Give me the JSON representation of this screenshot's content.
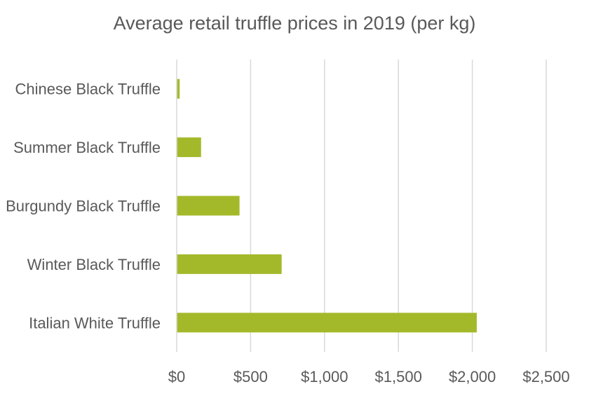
{
  "chart_data": {
    "type": "bar",
    "orientation": "horizontal",
    "title": "Average retail truffle prices in 2019 (per kg)",
    "xlabel": "",
    "ylabel": "",
    "categories": [
      "Chinese Black Truffle",
      "Summer Black Truffle",
      "Burgundy Black Truffle",
      "Winter Black Truffle",
      "Italian White Truffle"
    ],
    "values": [
      20,
      165,
      425,
      710,
      2030
    ],
    "xlim": [
      0,
      2500
    ],
    "x_ticks": [
      0,
      500,
      1000,
      1500,
      2000,
      2500
    ],
    "x_tick_labels": [
      "$0",
      "$500",
      "$1,000",
      "$1,500",
      "$2,000",
      "$2,500"
    ],
    "grid": "vertical",
    "legend": "none",
    "bar_color": "#A4B92A",
    "grid_color": "#D9D9D9",
    "text_color": "#595959"
  }
}
